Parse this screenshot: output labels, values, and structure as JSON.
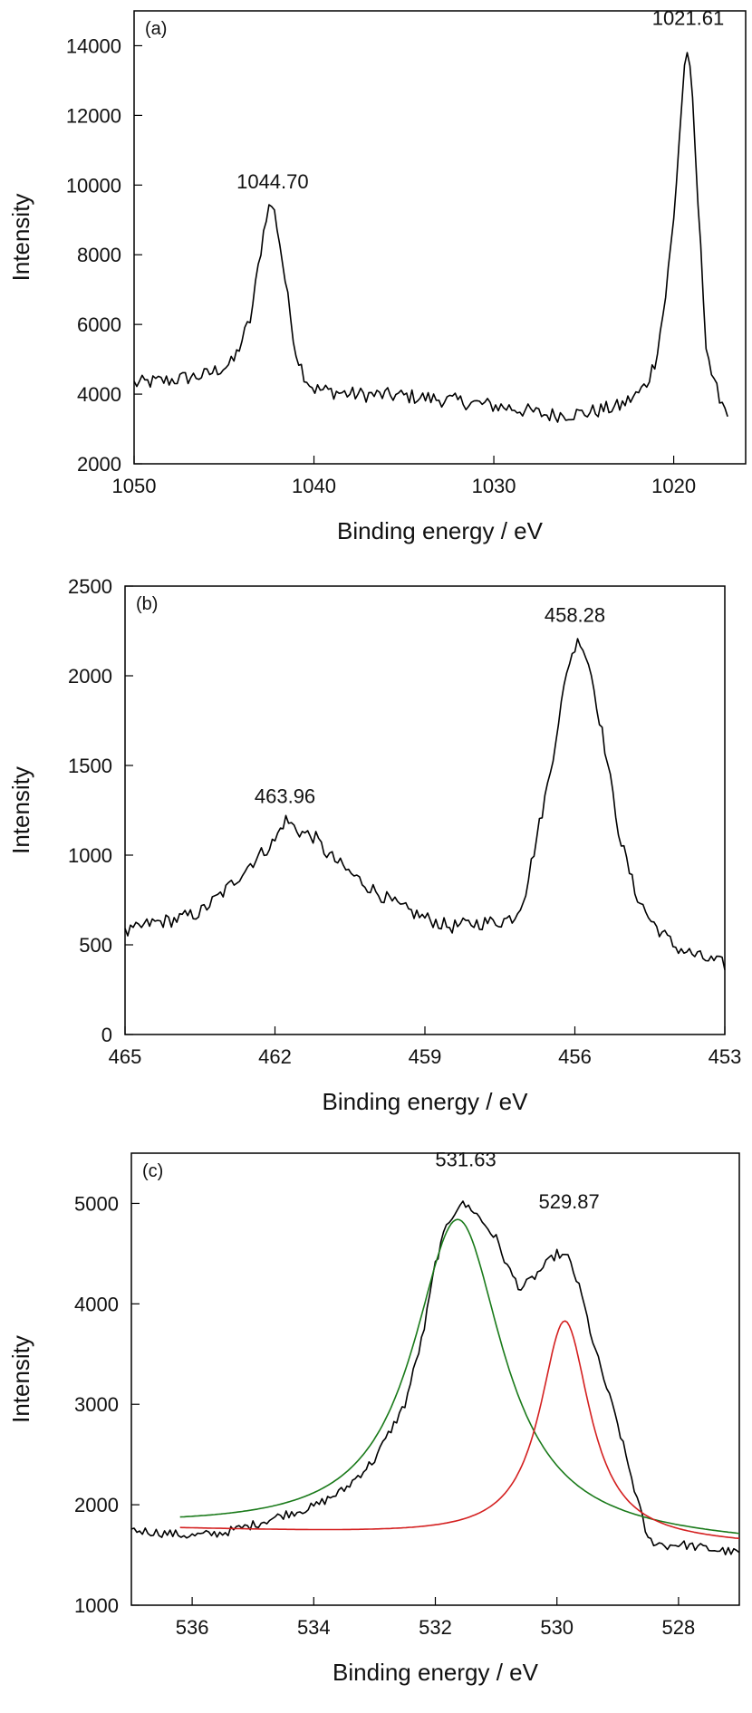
{
  "chart_data": [
    {
      "type": "line",
      "panel": "(a)",
      "xlabel": "Binding energy / eV",
      "ylabel": "Intensity",
      "xlim": [
        1050,
        1016
      ],
      "ylim": [
        2000,
        15000
      ],
      "x_reversed": true,
      "xticks": [
        1050,
        1040,
        1030,
        1020
      ],
      "yticks": [
        2000,
        4000,
        6000,
        8000,
        10000,
        12000,
        14000
      ],
      "grid": false,
      "annotations": [
        {
          "text": "1044.70",
          "x": 1042.3,
          "y": 9900
        },
        {
          "text": "1021.61",
          "x": 1019.2,
          "y": 14600
        }
      ],
      "series": [
        {
          "color": "#000000",
          "noise": 220,
          "points": [
            [
              1050,
              4300
            ],
            [
              1048,
              4400
            ],
            [
              1046,
              4550
            ],
            [
              1044.5,
              4900
            ],
            [
              1043.5,
              6200
            ],
            [
              1043,
              8000
            ],
            [
              1042.6,
              9300
            ],
            [
              1042.3,
              9450
            ],
            [
              1042,
              8700
            ],
            [
              1041.5,
              6900
            ],
            [
              1041,
              5200
            ],
            [
              1040.5,
              4500
            ],
            [
              1040,
              4150
            ],
            [
              1038,
              4000
            ],
            [
              1035,
              3950
            ],
            [
              1032,
              3800
            ],
            [
              1029,
              3600
            ],
            [
              1027,
              3400
            ],
            [
              1025,
              3450
            ],
            [
              1023,
              3650
            ],
            [
              1022,
              4000
            ],
            [
              1021.5,
              4300
            ],
            [
              1021,
              5000
            ],
            [
              1020.5,
              6600
            ],
            [
              1020,
              9000
            ],
            [
              1019.6,
              12000
            ],
            [
              1019.3,
              14100
            ],
            [
              1019,
              12800
            ],
            [
              1018.6,
              9000
            ],
            [
              1018.2,
              5500
            ],
            [
              1017.8,
              4300
            ],
            [
              1017.3,
              3800
            ],
            [
              1017,
              3500
            ]
          ]
        }
      ]
    },
    {
      "type": "line",
      "panel": "(b)",
      "xlabel": "Binding energy / eV",
      "ylabel": "Intensity",
      "xlim": [
        465,
        453
      ],
      "ylim": [
        0,
        2500
      ],
      "x_reversed": true,
      "xticks": [
        465,
        462,
        459,
        456,
        453
      ],
      "yticks": [
        0,
        500,
        1000,
        1500,
        2000,
        2500
      ],
      "grid": false,
      "annotations": [
        {
          "text": "463.96",
          "x": 461.8,
          "y": 1290
        },
        {
          "text": "458.28",
          "x": 456,
          "y": 2300
        }
      ],
      "series": [
        {
          "color": "#000000",
          "noise": 40,
          "points": [
            [
              465,
              560
            ],
            [
              464.5,
              620
            ],
            [
              464,
              640
            ],
            [
              463.5,
              680
            ],
            [
              463,
              800
            ],
            [
              462.5,
              950
            ],
            [
              462,
              1080
            ],
            [
              461.8,
              1200
            ],
            [
              461.5,
              1130
            ],
            [
              461.2,
              1100
            ],
            [
              461,
              1020
            ],
            [
              460.5,
              900
            ],
            [
              460,
              800
            ],
            [
              459.5,
              710
            ],
            [
              459,
              650
            ],
            [
              458.5,
              600
            ],
            [
              458,
              620
            ],
            [
              457.5,
              630
            ],
            [
              457.2,
              660
            ],
            [
              457,
              780
            ],
            [
              456.8,
              1050
            ],
            [
              456.5,
              1450
            ],
            [
              456.3,
              1800
            ],
            [
              456.1,
              2100
            ],
            [
              455.9,
              2210
            ],
            [
              455.7,
              2050
            ],
            [
              455.4,
              1600
            ],
            [
              455.1,
              1100
            ],
            [
              454.8,
              800
            ],
            [
              454.5,
              640
            ],
            [
              454,
              490
            ],
            [
              453.5,
              430
            ],
            [
              453,
              390
            ]
          ]
        }
      ]
    },
    {
      "type": "line",
      "panel": "(c)",
      "xlabel": "Binding energy / eV",
      "ylabel": "Intensity",
      "xlim": [
        537,
        527
      ],
      "ylim": [
        1000,
        5500
      ],
      "x_reversed": true,
      "xticks": [
        536,
        534,
        532,
        530,
        528
      ],
      "yticks": [
        1000,
        2000,
        3000,
        4000,
        5000
      ],
      "grid": false,
      "annotations": [
        {
          "text": "531.63",
          "x": 531.5,
          "y": 5370
        },
        {
          "text": "529.87",
          "x": 529.8,
          "y": 4950
        }
      ],
      "series": [
        {
          "color": "#000000",
          "noise": 45,
          "points": [
            [
              537,
              1750
            ],
            [
              536.5,
              1720
            ],
            [
              536,
              1690
            ],
            [
              535.5,
              1720
            ],
            [
              535,
              1800
            ],
            [
              534.5,
              1900
            ],
            [
              534,
              1980
            ],
            [
              533.5,
              2150
            ],
            [
              533,
              2450
            ],
            [
              532.5,
              3000
            ],
            [
              532.2,
              3700
            ],
            [
              532,
              4400
            ],
            [
              531.8,
              4800
            ],
            [
              531.6,
              5000
            ],
            [
              531.4,
              4950
            ],
            [
              531,
              4650
            ],
            [
              530.8,
              4350
            ],
            [
              530.6,
              4150
            ],
            [
              530.4,
              4250
            ],
            [
              530.2,
              4380
            ],
            [
              530,
              4500
            ],
            [
              529.8,
              4450
            ],
            [
              529.6,
              4100
            ],
            [
              529.4,
              3600
            ],
            [
              529,
              2800
            ],
            [
              528.7,
              2100
            ],
            [
              528.5,
              1650
            ],
            [
              528.2,
              1590
            ],
            [
              528,
              1610
            ],
            [
              527.5,
              1560
            ],
            [
              527,
              1520
            ]
          ]
        },
        {
          "color": "#1a7a1a",
          "model": "lorentzian",
          "center": 531.63,
          "height": 3160,
          "hwhm": 0.9,
          "baseline_left": 1760,
          "baseline_right": 1600,
          "x_range": [
            536.2,
            527
          ]
        },
        {
          "color": "#d42020",
          "model": "lorentzian",
          "center": 529.87,
          "height": 2180,
          "hwhm": 0.5,
          "baseline_left": 1760,
          "baseline_right": 1600,
          "x_range": [
            536.2,
            527
          ]
        }
      ]
    }
  ]
}
